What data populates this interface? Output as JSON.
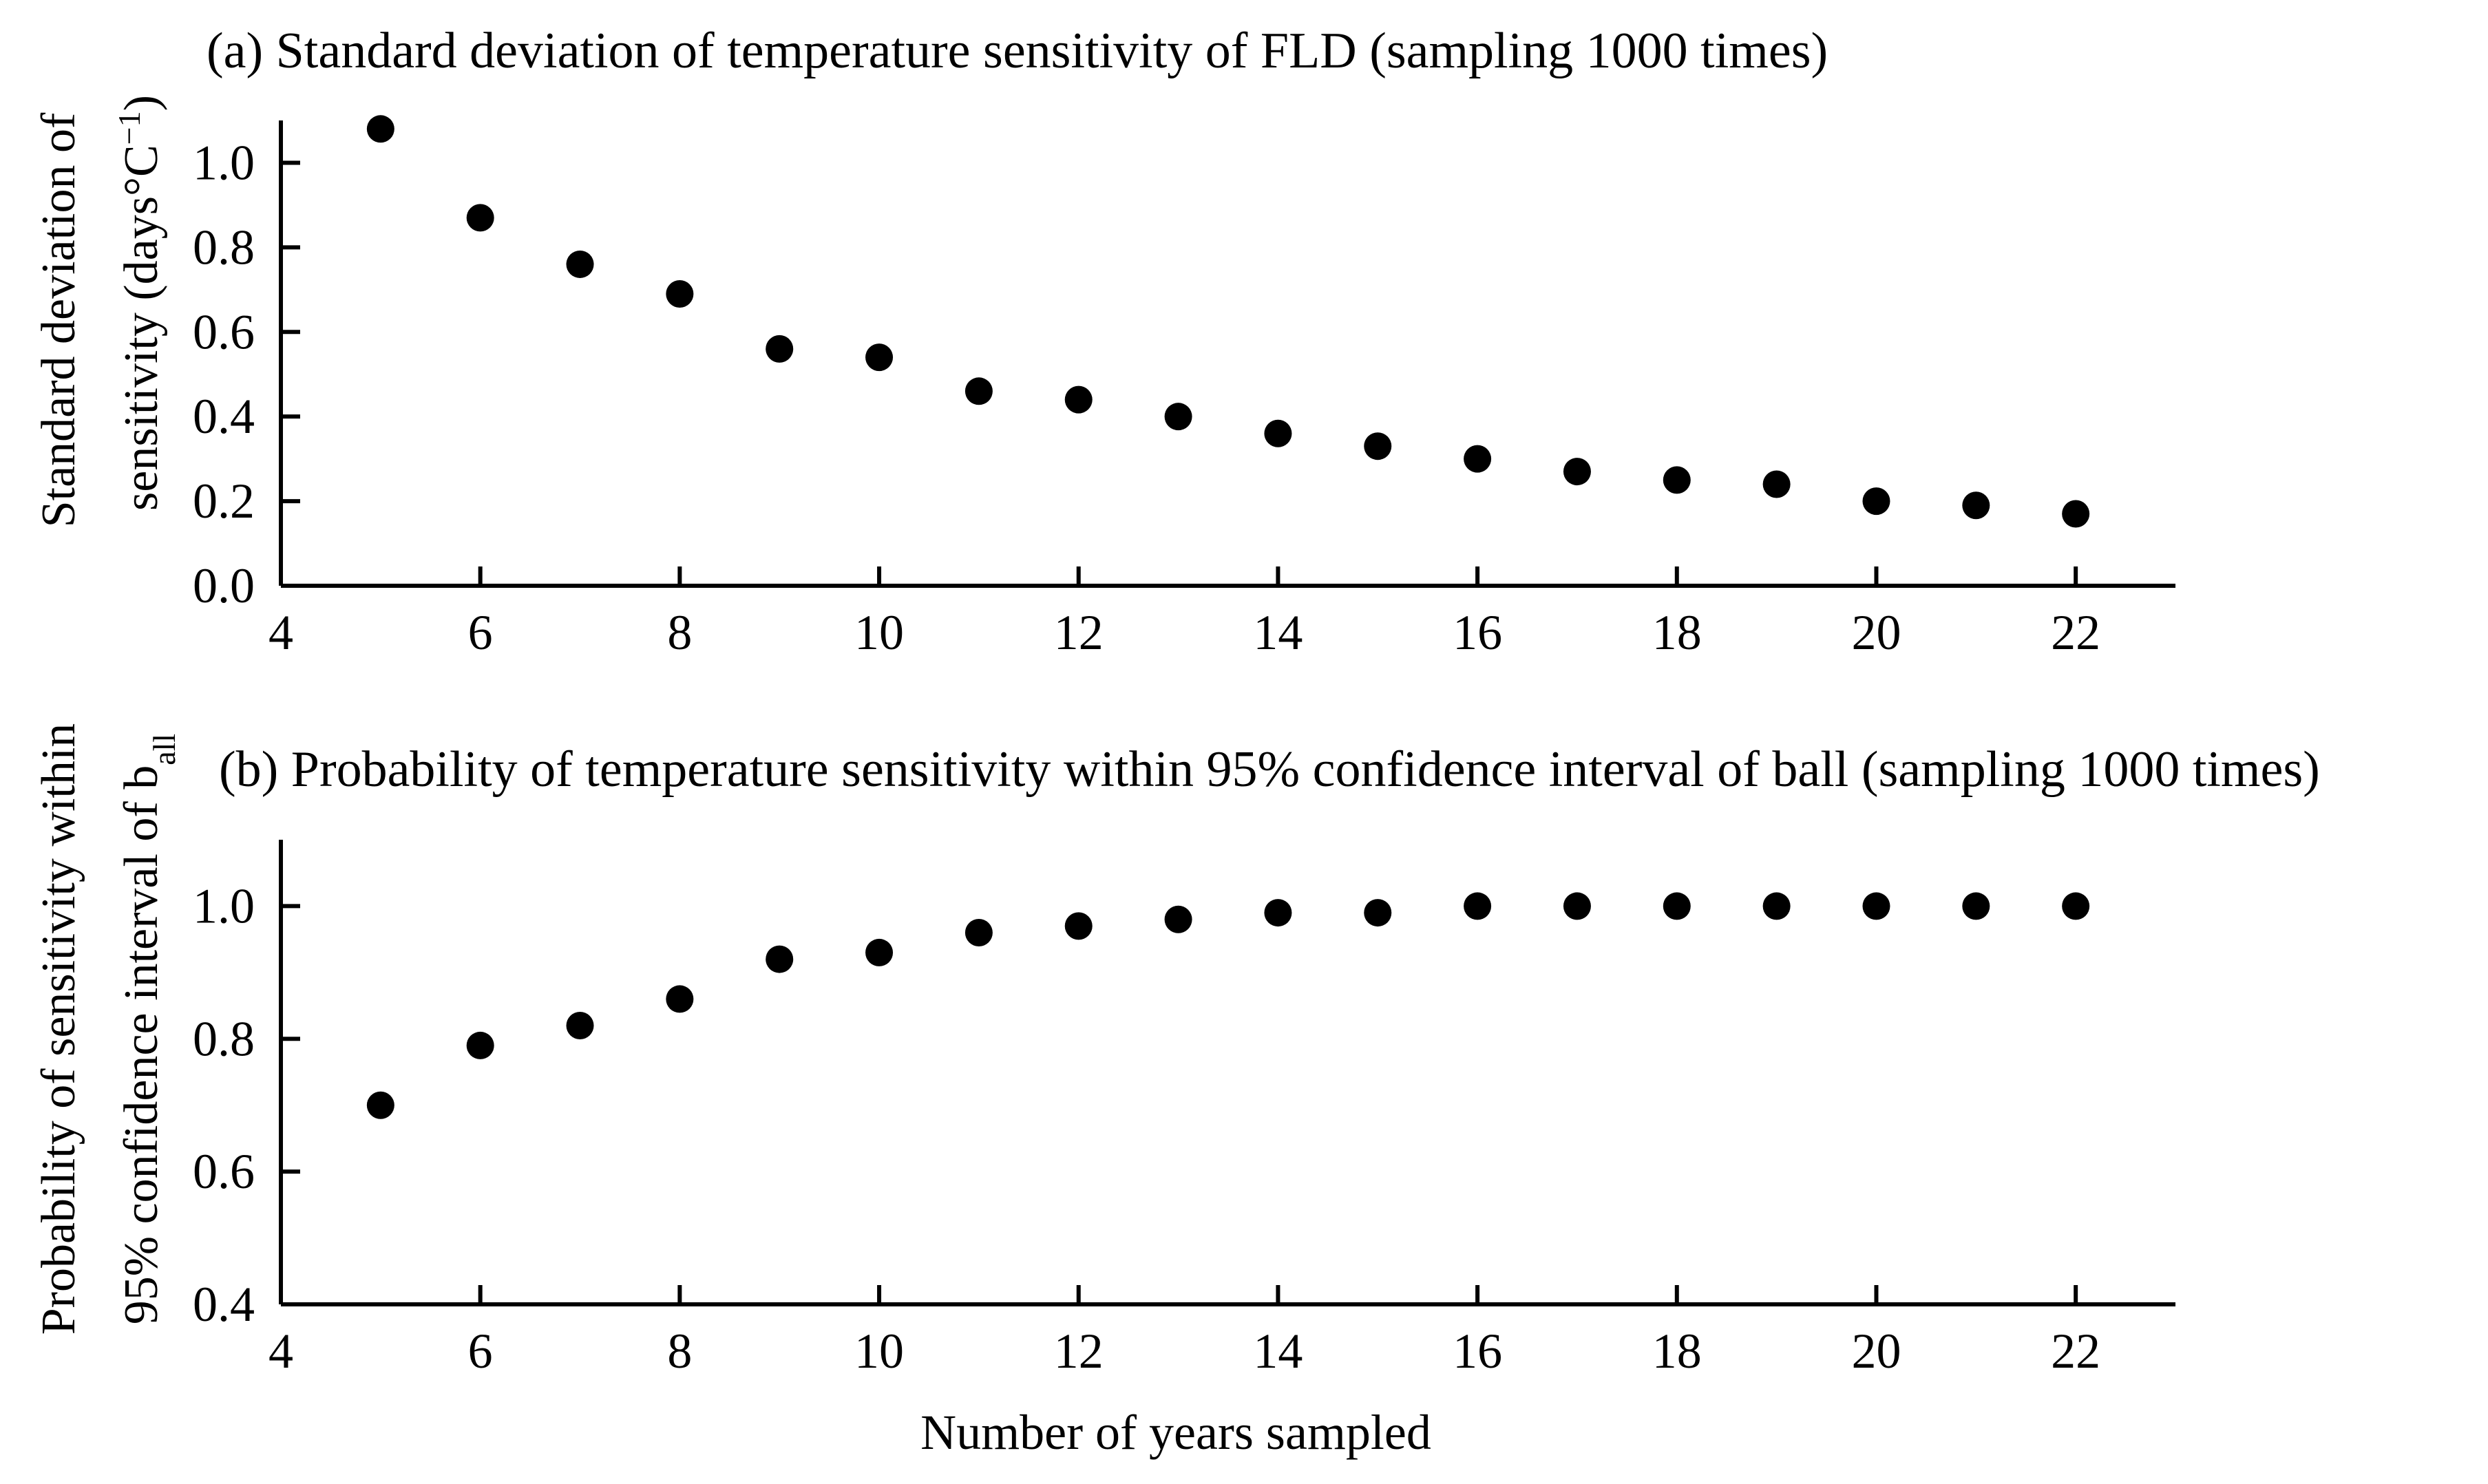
{
  "chart_data": [
    {
      "type": "scatter",
      "title": "(a) Standard deviation of temperature sensitivity of FLD (sampling 1000 times)",
      "ylabel_line1": "Standard deviation of",
      "ylabel_line2": "sensitivity (days°C",
      "ylabel_line2_sup": "−1",
      "ylabel_line2_end": ")",
      "xlim": [
        4,
        23
      ],
      "ylim": [
        0,
        1.1
      ],
      "xticks": [
        4,
        6,
        8,
        10,
        12,
        14,
        16,
        18,
        20,
        22
      ],
      "yticks": [
        "0.0",
        "0.2",
        "0.4",
        "0.6",
        "0.8",
        "1.0"
      ],
      "x": [
        5,
        6,
        7,
        8,
        9,
        10,
        11,
        12,
        13,
        14,
        15,
        16,
        17,
        18,
        19,
        20,
        21,
        22
      ],
      "y": [
        1.08,
        0.87,
        0.76,
        0.69,
        0.56,
        0.54,
        0.46,
        0.44,
        0.4,
        0.36,
        0.33,
        0.3,
        0.27,
        0.25,
        0.24,
        0.2,
        0.19,
        0.17
      ]
    },
    {
      "type": "scatter",
      "title": "(b) Probability of temperature sensitivity within 95% confidence interval of ball (sampling 1000 times)",
      "ylabel_line1": "Probability of sensitivity within",
      "ylabel_line2": "95% confidence interval of b",
      "ylabel_line2_sub": "all",
      "xlabel": "Number of years sampled",
      "xlim": [
        4,
        23
      ],
      "ylim": [
        0.4,
        1.1
      ],
      "xticks": [
        4,
        6,
        8,
        10,
        12,
        14,
        16,
        18,
        20,
        22
      ],
      "yticks": [
        "0.4",
        "0.6",
        "0.8",
        "1.0"
      ],
      "x": [
        5,
        6,
        7,
        8,
        9,
        10,
        11,
        12,
        13,
        14,
        15,
        16,
        17,
        18,
        19,
        20,
        21,
        22
      ],
      "y": [
        0.7,
        0.79,
        0.82,
        0.86,
        0.92,
        0.93,
        0.96,
        0.97,
        0.98,
        0.99,
        0.99,
        1.0,
        1.0,
        1.0,
        1.0,
        1.0,
        1.0,
        1.0
      ]
    }
  ]
}
